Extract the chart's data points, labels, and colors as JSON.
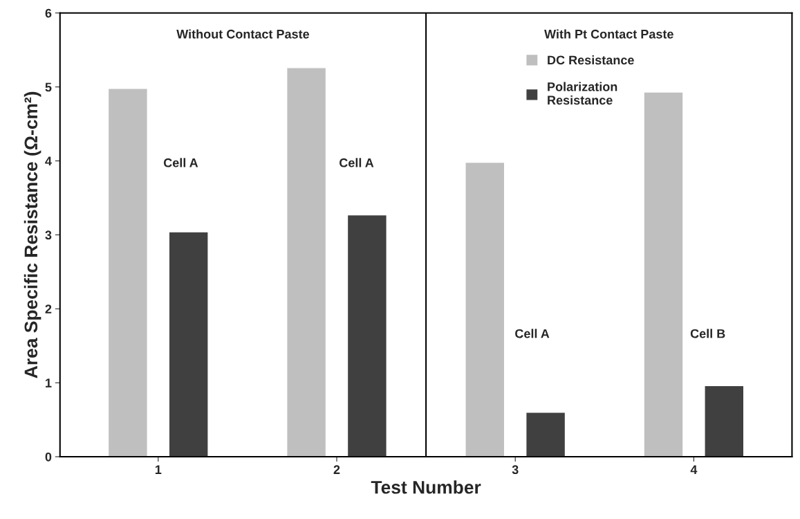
{
  "chart_data": {
    "type": "bar",
    "x": [
      1,
      2,
      3,
      4
    ],
    "xlim": [
      0.45,
      4.55
    ],
    "xticks": [
      1,
      2,
      3,
      4
    ],
    "ylim": [
      0,
      6
    ],
    "yticks": [
      0,
      1,
      2,
      3,
      4,
      5,
      6
    ],
    "xlabel": "Test Number",
    "ylabel": "Area Specific Resistance (Ω-cm²)",
    "series": [
      {
        "name": "DC Resistance",
        "color": "#bfbfbf",
        "values": [
          4.98,
          5.26,
          3.98,
          4.93
        ]
      },
      {
        "name": "Polarization\nResistance",
        "color": "#404040",
        "values": [
          3.04,
          3.27,
          0.6,
          0.96
        ]
      }
    ],
    "ref_lines": [
      {
        "axis": "x",
        "value": 2.5,
        "color": "#000000",
        "line_style": "solid"
      }
    ],
    "annotations": [
      "Without Contact Paste",
      "With Pt Contact Paste",
      "Cell A",
      "Cell A",
      "Cell A",
      "Cell B"
    ],
    "legend": "top right",
    "grid": false
  }
}
